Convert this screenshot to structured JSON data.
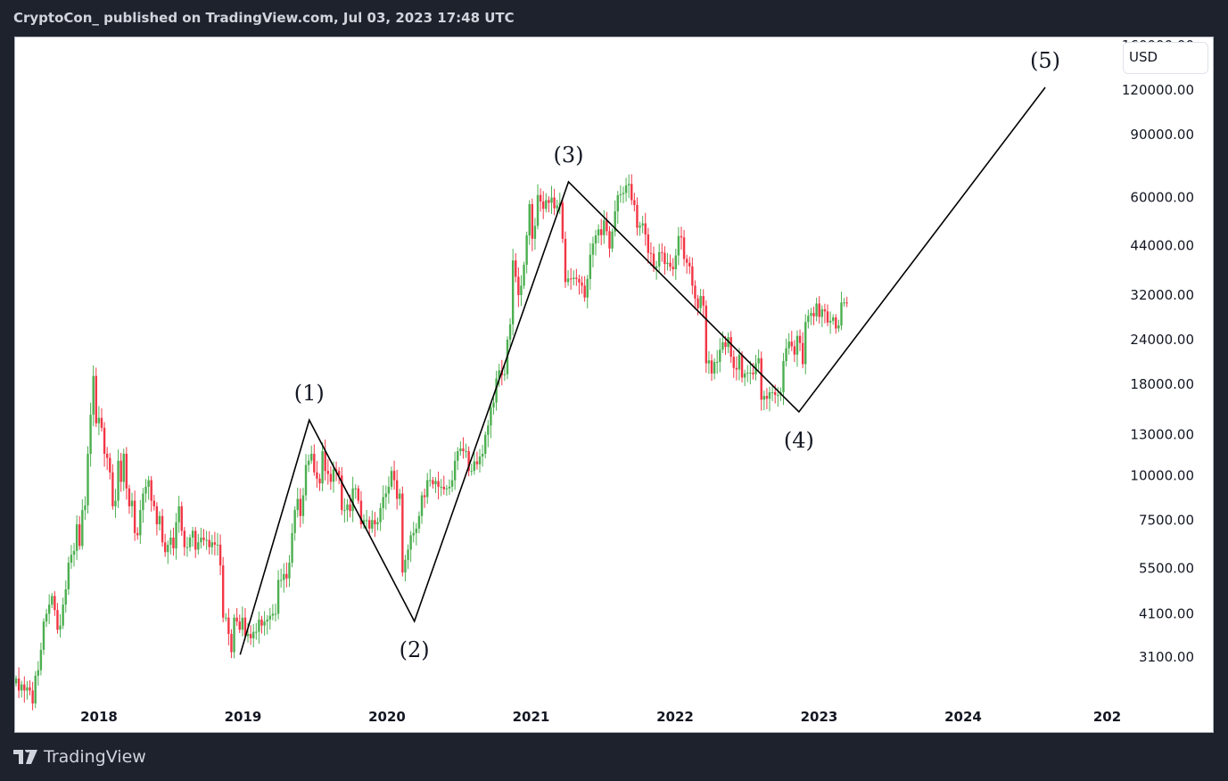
{
  "header": {
    "title": "CryptoCon_ published on TradingView.com, Jul 03, 2023 17:48 UTC"
  },
  "currency": "USD",
  "brand": "TradingView",
  "colors": {
    "up": "#4caf50",
    "down": "#f23645",
    "line": "#000000"
  },
  "chart_data": {
    "type": "candlestick",
    "scale": "log",
    "interval": "weekly",
    "start_date": "2017-06-05",
    "closes": [
      2700,
      2500,
      2600,
      2500,
      2550,
      2500,
      2300,
      2750,
      2850,
      3250,
      3900,
      4100,
      4350,
      4600,
      4200,
      3700,
      3800,
      4350,
      4800,
      5700,
      6000,
      6150,
      7300,
      6350,
      8000,
      8250,
      11500,
      14800,
      19000,
      14000,
      14500,
      13600,
      11500,
      11200,
      10200,
      8200,
      8500,
      11000,
      9600,
      11500,
      9200,
      8200,
      8500,
      6900,
      6800,
      8000,
      8900,
      9300,
      9700,
      8500,
      8200,
      7300,
      7700,
      6500,
      6100,
      6400,
      6700,
      6250,
      7400,
      8200,
      7000,
      6300,
      6300,
      6700,
      7000,
      6200,
      6500,
      6700,
      6600,
      6600,
      6300,
      6500,
      6400,
      6400,
      5600,
      4000,
      4000,
      3600,
      3200,
      4000,
      3900,
      3700,
      4000,
      3550,
      3600,
      3500,
      3650,
      3650,
      3950,
      3800,
      3900,
      3950,
      4050,
      4100,
      4100,
      5100,
      5100,
      5300,
      5150,
      5700,
      6900,
      8000,
      8600,
      7700,
      8800,
      10700,
      11000,
      11500,
      10200,
      9800,
      9500,
      11700,
      10300,
      10100,
      9600,
      10400,
      10300,
      10000,
      8000,
      8000,
      8300,
      7950,
      9200,
      9200,
      8500,
      7300,
      7500,
      7500,
      7100,
      7500,
      7300,
      7400,
      8100,
      8700,
      8900,
      9300,
      10300,
      9700,
      8600,
      8900,
      5350,
      5800,
      6200,
      6800,
      6900,
      7100,
      7700,
      8800,
      8700,
      9700,
      9700,
      9450,
      9650,
      9300,
      9300,
      9150,
      9200,
      9300,
      9700,
      11000,
      11700,
      11900,
      11700,
      11700,
      10300,
      10300,
      10950,
      10750,
      11300,
      11500,
      13000,
      13800,
      15500,
      16000,
      18700,
      19700,
      19100,
      19200,
      24000,
      26500,
      40000,
      36000,
      32000,
      34000,
      38900,
      47000,
      57500,
      46000,
      50000,
      61000,
      58500,
      55800,
      59000,
      58000,
      60000,
      56000,
      57000,
      58000,
      46000,
      34800,
      35600,
      35500,
      35800,
      35500,
      34700,
      34000,
      31500,
      35500,
      41500,
      44600,
      47000,
      48900,
      47100,
      51800,
      48300,
      43200,
      48200,
      54900,
      60900,
      61300,
      61800,
      64900,
      65500,
      59000,
      57200,
      49400,
      50100,
      50800,
      47300,
      42000,
      41800,
      38100,
      38500,
      42200,
      42000,
      39100,
      39400,
      38400,
      37800,
      41300,
      46800,
      46400,
      40400,
      39400,
      38500,
      34000,
      31300,
      29400,
      31800,
      29900,
      20600,
      21000,
      19300,
      20800,
      20800,
      22500,
      23600,
      22900,
      24400,
      21500,
      20000,
      19800,
      21800,
      18800,
      19300,
      19400,
      19400,
      19200,
      20600,
      21300,
      16300,
      16700,
      16400,
      17100,
      17100,
      16800,
      16800,
      17100,
      20900,
      22700,
      23700,
      23000,
      21800,
      24600,
      23500,
      20500,
      26900,
      28000,
      28500,
      27900,
      30300,
      27800,
      29200,
      28800,
      26800,
      27100,
      27700,
      25800,
      26300,
      30500,
      30500,
      30400
    ],
    "y_ticks": [
      "160000.00",
      "120000.00",
      "90000.00",
      "60000.00",
      "44000.00",
      "32000.00",
      "24000.00",
      "18000.00",
      "13000.00",
      "10000.00",
      "7500.00",
      "5500.00",
      "4100.00",
      "3100.00"
    ],
    "x_ticks": [
      "2018",
      "2019",
      "2020",
      "2021",
      "2022",
      "2023",
      "2024",
      "202"
    ],
    "wave": {
      "points": [
        {
          "date": 2018.98,
          "price": 3150
        },
        {
          "date": 2019.46,
          "price": 14300
        },
        {
          "date": 2020.19,
          "price": 3905
        },
        {
          "date": 2021.26,
          "price": 66400
        },
        {
          "date": 2022.86,
          "price": 15070
        },
        {
          "date": 2024.57,
          "price": 122100
        }
      ],
      "labels": [
        {
          "text": "(1)",
          "date": 2019.46,
          "price": 14300,
          "pos": "above"
        },
        {
          "text": "(2)",
          "date": 2020.19,
          "price": 3905,
          "pos": "below"
        },
        {
          "text": "(3)",
          "date": 2021.26,
          "price": 66400,
          "pos": "above"
        },
        {
          "text": "(4)",
          "date": 2022.86,
          "price": 15070,
          "pos": "below"
        },
        {
          "text": "(5)",
          "date": 2024.57,
          "price": 122100,
          "pos": "above"
        }
      ]
    }
  }
}
